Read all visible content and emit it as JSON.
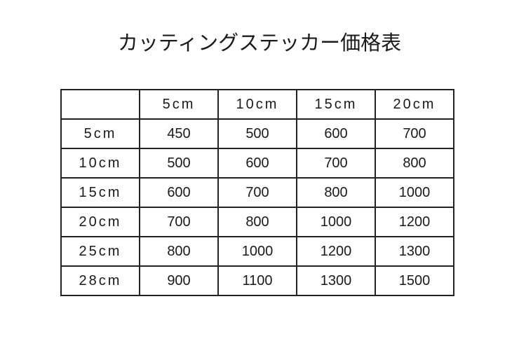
{
  "title": "カッティングステッカー価格表",
  "table": {
    "corner": "",
    "columns": [
      "5cm",
      "10cm",
      "15cm",
      "20cm"
    ],
    "rows": [
      {
        "label": "5cm",
        "values": [
          "450",
          "500",
          "600",
          "700"
        ]
      },
      {
        "label": "10cm",
        "values": [
          "500",
          "600",
          "700",
          "800"
        ]
      },
      {
        "label": "15cm",
        "values": [
          "600",
          "700",
          "800",
          "1000"
        ]
      },
      {
        "label": "20cm",
        "values": [
          "700",
          "800",
          "1000",
          "1200"
        ]
      },
      {
        "label": "25cm",
        "values": [
          "800",
          "1000",
          "1200",
          "1300"
        ]
      },
      {
        "label": "28cm",
        "values": [
          "900",
          "1100",
          "1300",
          "1500"
        ]
      }
    ]
  }
}
